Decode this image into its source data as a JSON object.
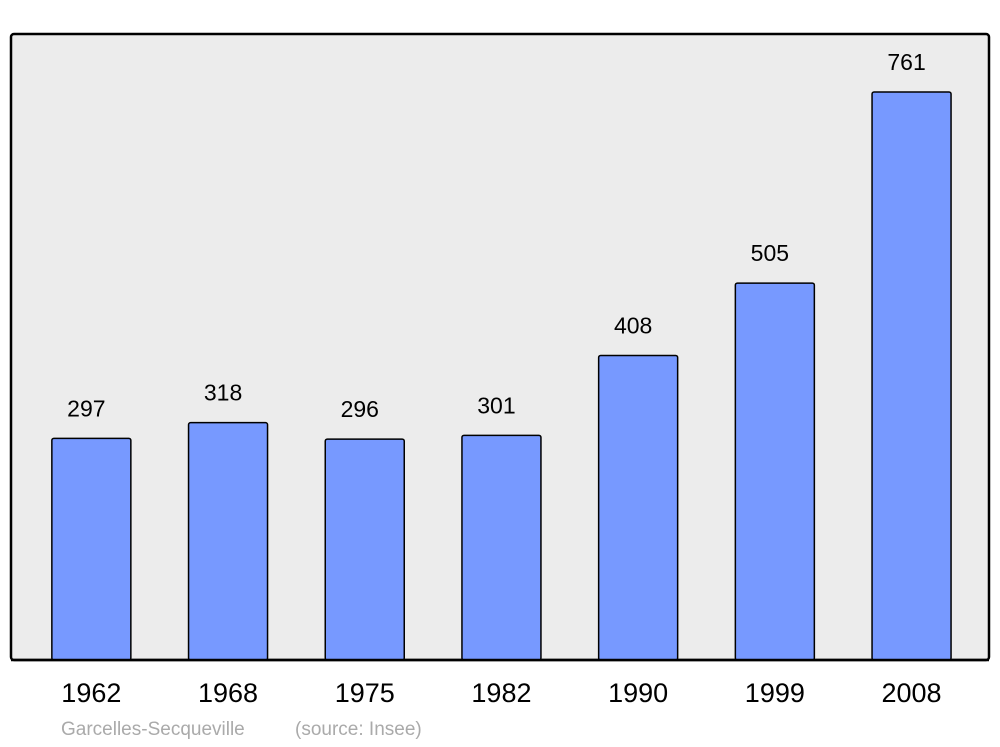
{
  "chart_data": {
    "type": "bar",
    "title": "Garcelles-Secqueville",
    "source": "(source: Insee)",
    "categories": [
      "1962",
      "1968",
      "1975",
      "1982",
      "1990",
      "1999",
      "2008"
    ],
    "values": [
      297,
      318,
      296,
      301,
      408,
      505,
      761
    ],
    "color": "#7799ff"
  }
}
